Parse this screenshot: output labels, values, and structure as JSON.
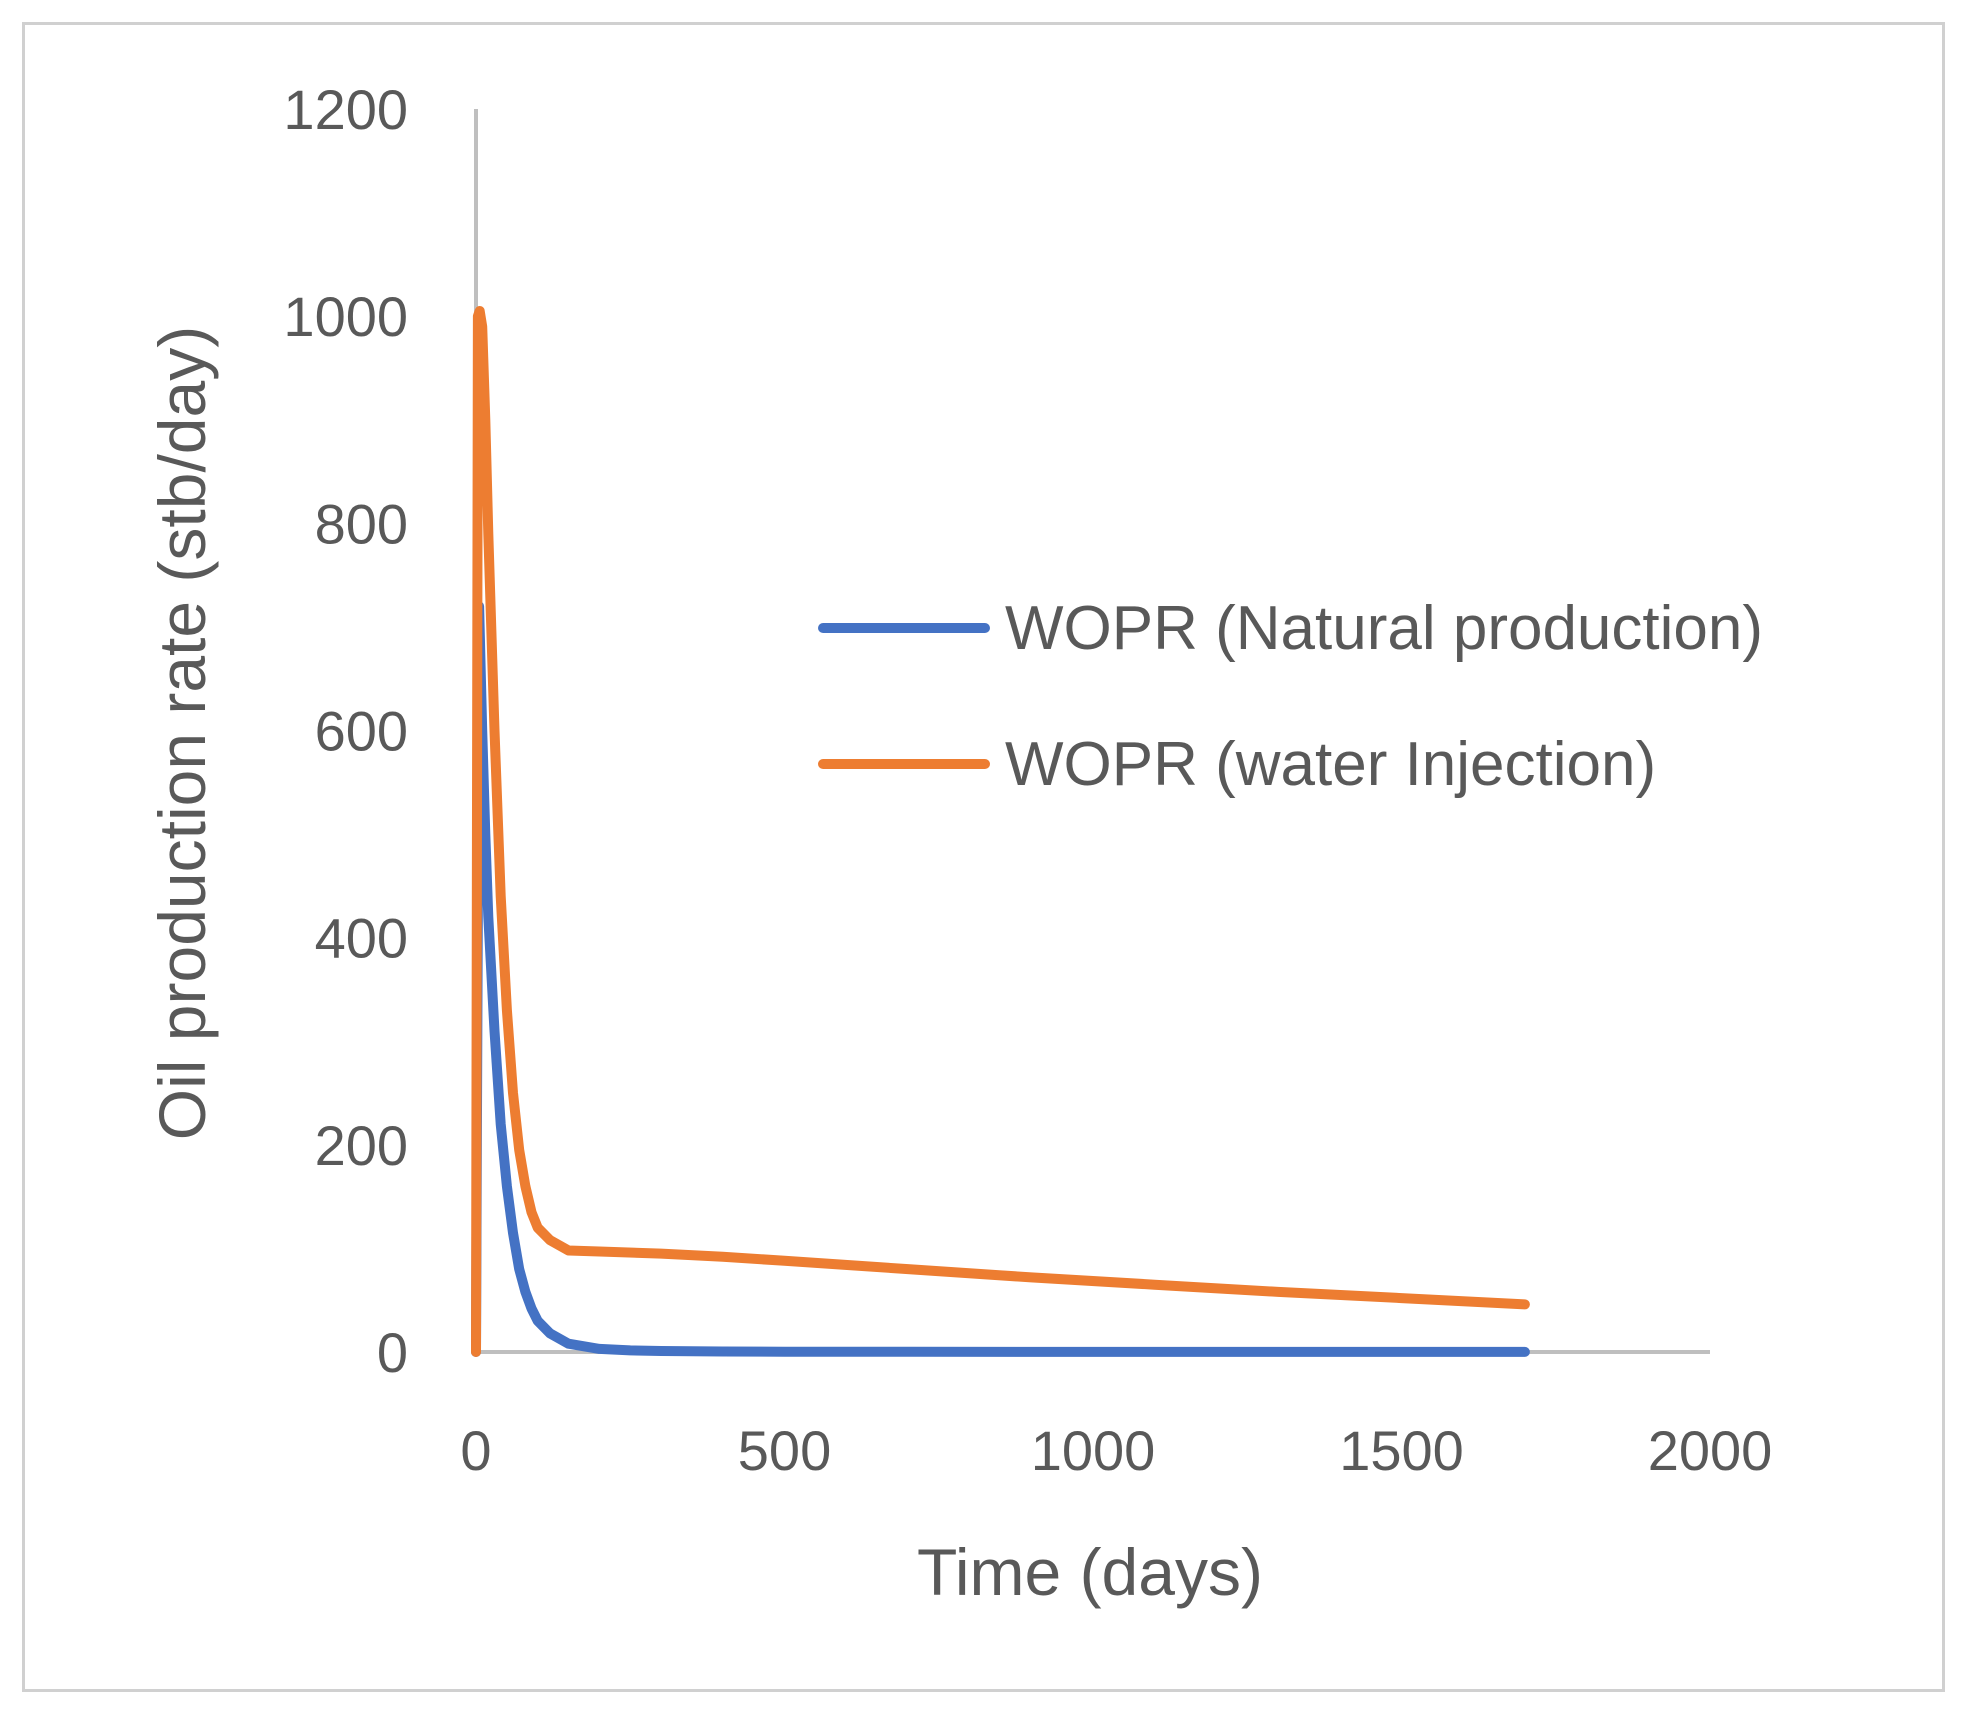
{
  "chart_data": {
    "type": "line",
    "title": "",
    "xlabel": "Time (days)",
    "ylabel": "Oil production rate (stb/day)",
    "xlim": [
      0,
      2000
    ],
    "ylim": [
      0,
      1200
    ],
    "x_ticks": [
      "0",
      "500",
      "1000",
      "1500",
      "2000"
    ],
    "y_ticks": [
      "0",
      "200",
      "400",
      "600",
      "800",
      "1000",
      "1200"
    ],
    "grid": false,
    "legend_position": "right",
    "series": [
      {
        "name": "WOPR (Natural production)",
        "color": "#4472C4",
        "x": [
          0,
          5,
          10,
          15,
          20,
          30,
          40,
          50,
          60,
          70,
          80,
          90,
          100,
          120,
          150,
          200,
          250,
          300,
          400,
          500,
          700,
          1000,
          1300,
          1500,
          1700
        ],
        "y": [
          0,
          720,
          600,
          500,
          420,
          310,
          220,
          160,
          115,
          80,
          58,
          42,
          30,
          18,
          8,
          3,
          1.5,
          1,
          0.5,
          0.3,
          0.2,
          0.1,
          0.1,
          0.1,
          0.1
        ]
      },
      {
        "name": "WOPR (water Injection)",
        "color": "#ED7D31",
        "x": [
          0,
          3,
          6,
          10,
          15,
          20,
          30,
          40,
          50,
          60,
          70,
          80,
          90,
          100,
          120,
          150,
          200,
          300,
          400,
          500,
          700,
          900,
          1100,
          1300,
          1500,
          1700
        ],
        "y": [
          0,
          1000,
          1005,
          990,
          900,
          790,
          600,
          440,
          330,
          250,
          195,
          160,
          135,
          120,
          108,
          98,
          97,
          95,
          92,
          88,
          80,
          72,
          65,
          58,
          52,
          46
        ]
      }
    ]
  }
}
